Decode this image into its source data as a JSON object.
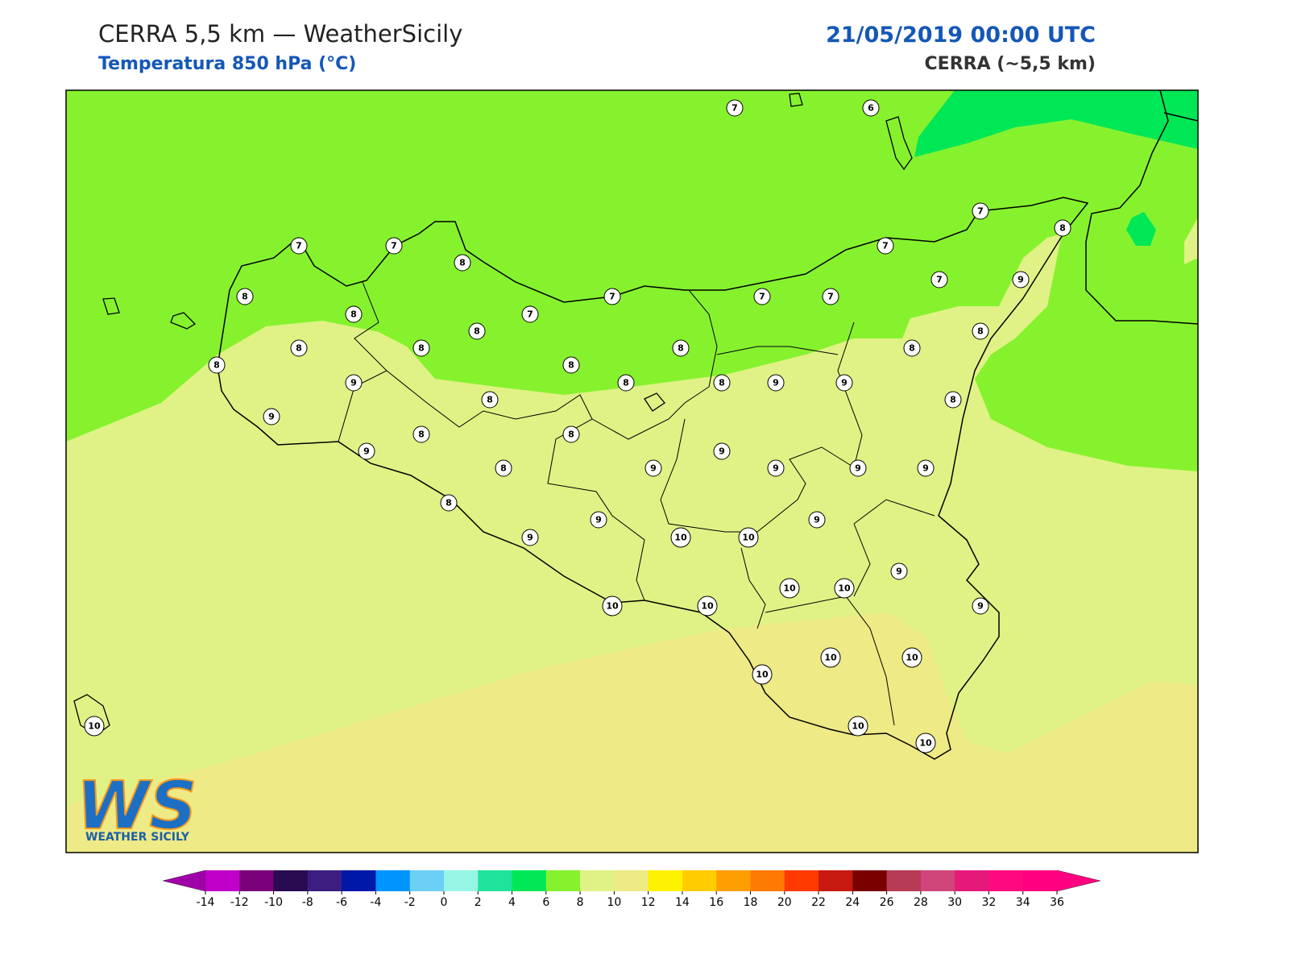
{
  "header": {
    "title": "CERRA 5,5 km — WeatherSicily",
    "subtitle": "Temperatura 850 hPa (°C)",
    "datetime": "21/05/2019 00:00 UTC",
    "model": "CERRA (~5,5 km)"
  },
  "stations": [
    7,
    6,
    7,
    8,
    7,
    7,
    8,
    7,
    7,
    9,
    8,
    7,
    7,
    7,
    8,
    7,
    8,
    8,
    8,
    8,
    8,
    8,
    8,
    8,
    9,
    8,
    8,
    9,
    9,
    8,
    8,
    9,
    8,
    8,
    9,
    9,
    8,
    9,
    9,
    9,
    9,
    8,
    9,
    9,
    9,
    10,
    10,
    9,
    10,
    10,
    10,
    10,
    9,
    10,
    10,
    10,
    10,
    10,
    10
  ],
  "colorbar": {
    "ticks": [
      -14,
      -12,
      -10,
      -8,
      -6,
      -4,
      -2,
      0,
      2,
      4,
      6,
      8,
      10,
      12,
      14,
      16,
      18,
      20,
      22,
      24,
      26,
      28,
      30,
      32,
      34,
      36
    ],
    "colors": [
      "#c000c8",
      "#7a007a",
      "#2a0a50",
      "#3b1e80",
      "#0018a8",
      "#0094ff",
      "#6ccff6",
      "#97f5e6",
      "#1ee39a",
      "#00e756",
      "#86f22e",
      "#e0f285",
      "#eeea85",
      "#fff200",
      "#ffcd00",
      "#ff9e00",
      "#ff7a00",
      "#ff3a00",
      "#c81a10",
      "#7a0000",
      "#b83b55",
      "#d0457a",
      "#e5197a",
      "#ff0a7e",
      "#ff0080"
    ],
    "under_color": "#a000a8",
    "over_color": "#ff0080"
  },
  "logo": {
    "mark": "WS",
    "name": "WEATHER SICILY"
  }
}
